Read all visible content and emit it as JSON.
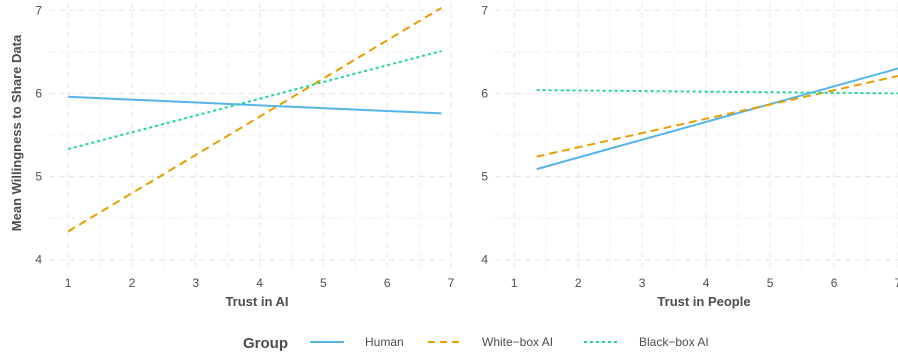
{
  "chart_data": [
    {
      "type": "line",
      "xlabel": "Trust in AI",
      "ylabel": "Mean Willingness to Share Data",
      "xlim": [
        0.7,
        7.0
      ],
      "ylim": [
        3.9,
        7.1
      ],
      "xticks": [
        "1",
        "2",
        "3",
        "4",
        "5",
        "6",
        "7"
      ],
      "yticks": [
        "4",
        "5",
        "6",
        "7"
      ],
      "grid": true,
      "series": [
        {
          "name": "Human",
          "x": [
            1,
            6.85
          ],
          "y": [
            5.96,
            5.76
          ]
        },
        {
          "name": "White−box AI",
          "x": [
            1,
            6.85
          ],
          "y": [
            4.34,
            7.03
          ]
        },
        {
          "name": "Black−box AI",
          "x": [
            1,
            6.85
          ],
          "y": [
            5.33,
            6.51
          ]
        }
      ]
    },
    {
      "type": "line",
      "xlabel": "Trust in People",
      "ylabel": "",
      "xlim": [
        0.7,
        7.0
      ],
      "ylim": [
        3.9,
        7.1
      ],
      "xticks": [
        "1",
        "2",
        "3",
        "4",
        "5",
        "6",
        "7"
      ],
      "yticks": [
        "4",
        "5",
        "6",
        "7"
      ],
      "grid": true,
      "series": [
        {
          "name": "Human",
          "x": [
            1.35,
            7
          ],
          "y": [
            5.09,
            6.3
          ]
        },
        {
          "name": "White−box AI",
          "x": [
            1.35,
            7
          ],
          "y": [
            5.24,
            6.21
          ]
        },
        {
          "name": "Black−box AI",
          "x": [
            1.35,
            7
          ],
          "y": [
            6.04,
            6.0
          ]
        }
      ]
    }
  ],
  "legend": {
    "title": "Group",
    "position": "bottom",
    "items": [
      {
        "label": "Human",
        "color": "#56B4E9",
        "dash": "solid"
      },
      {
        "label": "White−box AI",
        "color": "#E69F00",
        "dash": "dashed"
      },
      {
        "label": "Black−box AI",
        "color": "#1ED69E",
        "dash": "dotted"
      }
    ]
  },
  "colors": {
    "Human": "#56B4E9",
    "White−box AI": "#E69F00",
    "Black−box AI": "#1ED69E"
  }
}
